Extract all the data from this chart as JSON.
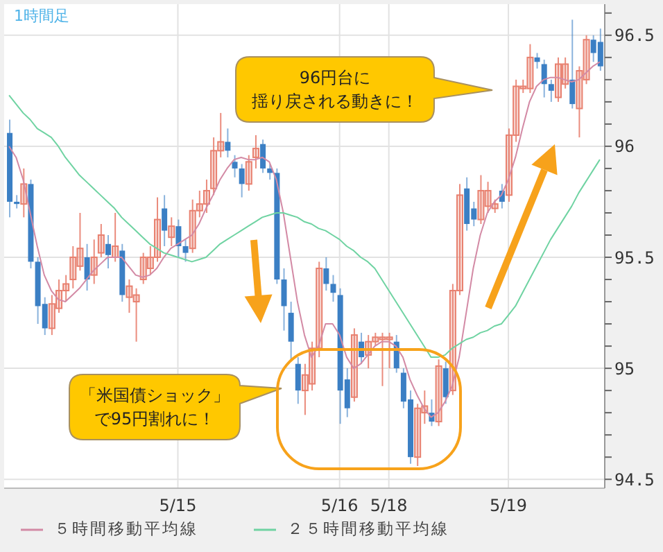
{
  "chart_data": {
    "type": "candlestick",
    "title": "1時間足",
    "annotations": [
      "96円台に揺り戻される動きに！",
      "「米国債ショック」で95円割れに！"
    ],
    "categories": [
      null,
      null,
      null,
      null,
      null,
      null,
      null,
      null,
      null,
      null,
      null,
      null,
      null,
      null,
      null,
      null,
      null,
      null,
      null,
      null,
      null,
      null,
      null,
      null,
      "5/15",
      null,
      null,
      null,
      null,
      null,
      null,
      null,
      null,
      null,
      null,
      null,
      null,
      null,
      null,
      null,
      null,
      null,
      null,
      null,
      null,
      null,
      null,
      "5/16",
      null,
      null,
      null,
      null,
      null,
      null,
      "5/18",
      null,
      null,
      null,
      null,
      null,
      null,
      null,
      null,
      null,
      null,
      null,
      null,
      null,
      null,
      null,
      null,
      "5/19",
      null,
      null,
      null,
      null,
      null,
      null,
      null,
      null,
      null,
      null,
      null,
      null,
      null
    ],
    "ohlc": [
      [
        96.06,
        96.12,
        95.68,
        95.75
      ],
      [
        95.75,
        95.78,
        95.72,
        95.74
      ],
      [
        95.74,
        95.9,
        95.68,
        95.83
      ],
      [
        95.83,
        95.85,
        95.45,
        95.48
      ],
      [
        95.48,
        95.5,
        95.2,
        95.28
      ],
      [
        95.29,
        95.32,
        95.15,
        95.18
      ],
      [
        95.18,
        95.33,
        95.15,
        95.29
      ],
      [
        95.27,
        95.4,
        95.25,
        95.35
      ],
      [
        95.35,
        95.42,
        95.3,
        95.38
      ],
      [
        95.4,
        95.55,
        95.36,
        95.5
      ],
      [
        95.46,
        95.7,
        95.44,
        95.54
      ],
      [
        95.5,
        95.56,
        95.35,
        95.4
      ],
      [
        95.42,
        95.58,
        95.38,
        95.5
      ],
      [
        95.52,
        95.65,
        95.5,
        95.6
      ],
      [
        95.56,
        95.6,
        95.45,
        95.51
      ],
      [
        95.5,
        95.7,
        95.48,
        95.55
      ],
      [
        95.53,
        95.56,
        95.3,
        95.33
      ],
      [
        95.32,
        95.4,
        95.25,
        95.37
      ],
      [
        95.3,
        95.36,
        95.12,
        95.33
      ],
      [
        95.4,
        95.52,
        95.38,
        95.5
      ],
      [
        95.45,
        95.55,
        95.42,
        95.5
      ],
      [
        95.5,
        95.77,
        95.48,
        95.67
      ],
      [
        95.72,
        95.78,
        95.55,
        95.62
      ],
      [
        95.59,
        95.68,
        95.55,
        95.64
      ],
      [
        95.64,
        95.67,
        95.5,
        95.55
      ],
      [
        95.55,
        95.58,
        95.48,
        95.52
      ],
      [
        95.54,
        95.76,
        95.52,
        95.71
      ],
      [
        95.71,
        95.8,
        95.68,
        95.74
      ],
      [
        95.74,
        95.85,
        95.7,
        95.8
      ],
      [
        95.81,
        96.04,
        95.78,
        95.98
      ],
      [
        95.98,
        96.15,
        95.95,
        96.02
      ],
      [
        96.02,
        96.08,
        95.95,
        95.98
      ],
      [
        95.93,
        95.96,
        95.86,
        95.9
      ],
      [
        95.9,
        95.92,
        95.77,
        95.83
      ],
      [
        95.83,
        95.96,
        95.8,
        95.93
      ],
      [
        95.95,
        96.05,
        95.9,
        95.99
      ],
      [
        96.01,
        96.03,
        95.88,
        95.9
      ],
      [
        95.9,
        95.92,
        95.85,
        95.88
      ],
      [
        95.88,
        95.9,
        95.38,
        95.4
      ],
      [
        95.4,
        95.45,
        95.17,
        95.28
      ],
      [
        95.25,
        95.3,
        95.04,
        95.12
      ],
      [
        95.02,
        95.05,
        94.84,
        94.9
      ],
      [
        94.9,
        95.02,
        94.79,
        94.97
      ],
      [
        94.93,
        95.12,
        94.9,
        95.09
      ],
      [
        95.09,
        95.48,
        95.05,
        95.45
      ],
      [
        95.45,
        95.5,
        95.35,
        95.38
      ],
      [
        95.38,
        95.42,
        95.3,
        95.34
      ],
      [
        95.33,
        95.36,
        94.75,
        94.9
      ],
      [
        94.95,
        95.0,
        94.78,
        94.82
      ],
      [
        94.87,
        95.18,
        94.85,
        95.15
      ],
      [
        95.12,
        95.16,
        95.02,
        95.05
      ],
      [
        95.06,
        95.15,
        95.0,
        95.12
      ],
      [
        95.12,
        95.16,
        95.1,
        95.14
      ],
      [
        95.13,
        95.16,
        94.92,
        95.14
      ],
      [
        95.13,
        95.16,
        95.0,
        95.14
      ],
      [
        95.12,
        95.15,
        94.98,
        95.0
      ],
      [
        94.98,
        95.0,
        94.82,
        94.85
      ],
      [
        94.86,
        94.9,
        94.57,
        94.6
      ],
      [
        94.6,
        94.84,
        94.56,
        94.82
      ],
      [
        94.8,
        94.9,
        94.75,
        94.83
      ],
      [
        94.8,
        94.86,
        94.74,
        94.76
      ],
      [
        94.76,
        95.04,
        94.74,
        95.01
      ],
      [
        95.0,
        95.03,
        94.84,
        94.87
      ],
      [
        94.9,
        95.38,
        94.88,
        95.35
      ],
      [
        95.35,
        95.83,
        95.33,
        95.78
      ],
      [
        95.81,
        95.86,
        95.62,
        95.65
      ],
      [
        95.72,
        95.75,
        95.64,
        95.67
      ],
      [
        95.67,
        95.87,
        95.65,
        95.8
      ],
      [
        95.73,
        95.84,
        95.7,
        95.8
      ],
      [
        95.72,
        95.76,
        95.7,
        95.74
      ],
      [
        95.8,
        95.83,
        95.72,
        95.75
      ],
      [
        95.78,
        96.08,
        95.75,
        96.05
      ],
      [
        96.05,
        96.3,
        96.02,
        96.27
      ],
      [
        96.26,
        96.3,
        96.24,
        96.27
      ],
      [
        96.26,
        96.46,
        96.24,
        96.4
      ],
      [
        96.4,
        96.42,
        96.35,
        96.38
      ],
      [
        96.37,
        96.39,
        96.22,
        96.28
      ],
      [
        96.28,
        96.3,
        96.2,
        96.25
      ],
      [
        96.22,
        96.4,
        96.2,
        96.37
      ],
      [
        96.28,
        96.4,
        96.26,
        96.37
      ],
      [
        96.3,
        96.57,
        96.17,
        96.19
      ],
      [
        96.17,
        96.36,
        96.04,
        96.34
      ],
      [
        96.3,
        96.5,
        96.28,
        96.48
      ],
      [
        96.48,
        96.5,
        96.38,
        96.42
      ],
      [
        96.47,
        96.53,
        96.34,
        96.36
      ]
    ],
    "colors": [
      "#3b7fc4",
      "#3b7fc4",
      "#e8806f",
      "#3b7fc4",
      "#3b7fc4",
      "#3b7fc4",
      "#e8806f",
      "#e8806f",
      "#e8806f",
      "#e8806f",
      "#e8806f",
      "#3b7fc4",
      "#e8806f",
      "#e8806f",
      "#3b7fc4",
      "#e8806f",
      "#3b7fc4",
      "#e8806f",
      "#e8806f",
      "#e8806f",
      "#e8806f",
      "#e8806f",
      "#3b7fc4",
      "#e8806f",
      "#3b7fc4",
      "#3b7fc4",
      "#e8806f",
      "#e8806f",
      "#e8806f",
      "#e8806f",
      "#e8806f",
      "#3b7fc4",
      "#3b7fc4",
      "#3b7fc4",
      "#e8806f",
      "#e8806f",
      "#3b7fc4",
      "#3b7fc4",
      "#3b7fc4",
      "#3b7fc4",
      "#3b7fc4",
      "#3b7fc4",
      "#e8806f",
      "#e8806f",
      "#e8806f",
      "#3b7fc4",
      "#3b7fc4",
      "#3b7fc4",
      "#3b7fc4",
      "#e8806f",
      "#3b7fc4",
      "#e8806f",
      "#e8806f",
      "#e8806f",
      "#e8806f",
      "#3b7fc4",
      "#3b7fc4",
      "#3b7fc4",
      "#e8806f",
      "#e8806f",
      "#3b7fc4",
      "#e8806f",
      "#3b7fc4",
      "#e8806f",
      "#e8806f",
      "#3b7fc4",
      "#3b7fc4",
      "#e8806f",
      "#e8806f",
      "#e8806f",
      "#3b7fc4",
      "#e8806f",
      "#e8806f",
      "#e8806f",
      "#e8806f",
      "#3b7fc4",
      "#3b7fc4",
      "#3b7fc4",
      "#e8806f",
      "#e8806f",
      "#3b7fc4",
      "#e8806f",
      "#e8806f",
      "#3b7fc4",
      "#3b7fc4"
    ],
    "series": [
      {
        "type": "line",
        "name": "５時間移動平均線",
        "color": "#d38aa5",
        "values": [
          96.0,
          95.95,
          95.85,
          95.7,
          95.55,
          95.42,
          95.35,
          95.31,
          95.3,
          95.33,
          95.36,
          95.4,
          95.44,
          95.47,
          95.5,
          95.5,
          95.5,
          95.46,
          95.42,
          95.41,
          95.42,
          95.45,
          95.5,
          95.54,
          95.56,
          95.58,
          95.6,
          95.65,
          95.72,
          95.78,
          95.85,
          95.9,
          95.94,
          95.95,
          95.94,
          95.94,
          95.95,
          95.93,
          95.85,
          95.7,
          95.5,
          95.3,
          95.15,
          95.05,
          95.1,
          95.2,
          95.2,
          95.15,
          95.05,
          95.0,
          95.02,
          95.06,
          95.1,
          95.12,
          95.12,
          95.1,
          95.05,
          94.95,
          94.88,
          94.82,
          94.78,
          94.8,
          94.85,
          94.92,
          95.05,
          95.25,
          95.45,
          95.6,
          95.7,
          95.75,
          95.78,
          95.85,
          95.95,
          96.08,
          96.2,
          96.27,
          96.3,
          96.31,
          96.31,
          96.3,
          96.29,
          96.3,
          96.33,
          96.36,
          96.38
        ]
      },
      {
        "type": "line",
        "name": "２５時間移動平均線",
        "color": "#6fd3a2",
        "values": [
          96.23,
          96.19,
          96.15,
          96.12,
          96.08,
          96.06,
          96.04,
          96.0,
          95.95,
          95.91,
          95.87,
          95.84,
          95.81,
          95.78,
          95.75,
          95.72,
          95.68,
          95.65,
          95.62,
          95.59,
          95.56,
          95.54,
          95.52,
          95.51,
          95.5,
          95.49,
          95.48,
          95.49,
          95.5,
          95.53,
          95.56,
          95.58,
          95.6,
          95.62,
          95.64,
          95.66,
          95.68,
          95.69,
          95.7,
          95.7,
          95.69,
          95.68,
          95.66,
          95.65,
          95.63,
          95.62,
          95.6,
          95.58,
          95.55,
          95.53,
          95.5,
          95.48,
          95.45,
          95.4,
          95.35,
          95.3,
          95.25,
          95.2,
          95.15,
          95.1,
          95.05,
          95.05,
          95.06,
          95.09,
          95.11,
          95.13,
          95.14,
          95.16,
          95.17,
          95.19,
          95.2,
          95.24,
          95.28,
          95.34,
          95.4,
          95.46,
          95.52,
          95.58,
          95.63,
          95.68,
          95.73,
          95.79,
          95.84,
          95.89,
          95.94
        ]
      }
    ],
    "ylim": [
      94.46,
      96.64
    ],
    "yticks": [
      94.5,
      {
        "value": 94.6,
        "label": null
      },
      {
        "value": 94.7,
        "label": null
      },
      {
        "value": 94.8,
        "label": null
      },
      {
        "value": 94.9,
        "label": null
      },
      95,
      {
        "value": 95.1,
        "label": null
      },
      {
        "value": 95.2,
        "label": null
      },
      {
        "value": 95.3,
        "label": null
      },
      {
        "value": 95.4,
        "label": null
      },
      95.5,
      {
        "value": 95.6,
        "label": null
      },
      {
        "value": 95.7,
        "label": null
      },
      {
        "value": 95.8,
        "label": null
      },
      {
        "value": 95.9,
        "label": null
      },
      96,
      {
        "value": 96.1,
        "label": null
      },
      {
        "value": 96.2,
        "label": null
      },
      {
        "value": 96.3,
        "label": null
      },
      {
        "value": 96.4,
        "label": null
      },
      96.5,
      {
        "value": 96.6,
        "label": null
      }
    ],
    "grid": true,
    "legend": "bottom"
  }
}
